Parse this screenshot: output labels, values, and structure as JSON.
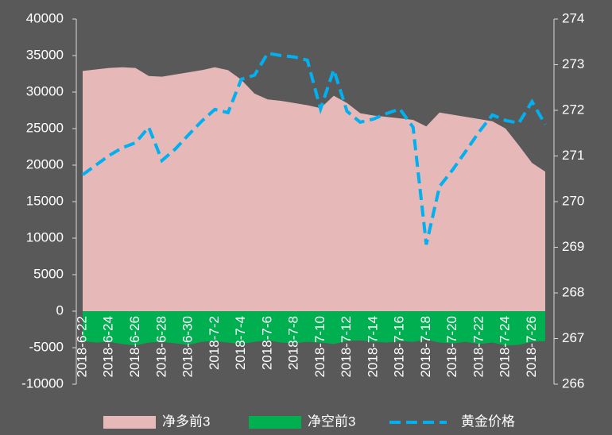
{
  "chart_data": {
    "type": "area",
    "categories": [
      "2018-6-22",
      null,
      "2018-6-24",
      null,
      "2018-6-26",
      null,
      "2018-6-28",
      null,
      "2018-6-30",
      null,
      "2018-7-2",
      null,
      "2018-7-4",
      null,
      "2018-7-6",
      null,
      "2018-7-8",
      null,
      "2018-7-10",
      null,
      "2018-7-12",
      null,
      "2018-7-14",
      null,
      "2018-7-16",
      null,
      "2018-7-18",
      null,
      "2018-7-20",
      null,
      "2018-7-22",
      null,
      "2018-7-24",
      null,
      "2018-7-26",
      null
    ],
    "series": [
      {
        "name": "净多前3",
        "type": "area",
        "color": "#e6b9b8",
        "values": [
          32900,
          33100,
          33300,
          33400,
          33300,
          32200,
          32100,
          32400,
          32700,
          33000,
          33400,
          33000,
          31700,
          29800,
          29000,
          28800,
          28500,
          28200,
          27800,
          29500,
          28500,
          27100,
          26800,
          26600,
          26400,
          26200,
          25300,
          27200,
          26900,
          26600,
          26300,
          26000,
          25000,
          22700,
          20300,
          19100
        ]
      },
      {
        "name": "净空前3",
        "type": "area",
        "color": "#00b050",
        "values": [
          -4100,
          -4300,
          -4200,
          -4500,
          -4700,
          -4300,
          -4200,
          -4400,
          -4600,
          -4200,
          -4100,
          -4300,
          -4500,
          -4200,
          -4000,
          -4300,
          -4400,
          -4200,
          -4300,
          -4500,
          -4100,
          -4000,
          -4200,
          -4300,
          -4100,
          -4200,
          -3900,
          -4300,
          -4400,
          -4200,
          -4500,
          -4300,
          -4700,
          -4600,
          -4200,
          -4100
        ]
      },
      {
        "name": "黄金价格",
        "type": "line",
        "axis": "y2",
        "color": "#00b0f0",
        "values": [
          270.59,
          270.8,
          271.01,
          271.18,
          271.29,
          271.63,
          270.9,
          271.15,
          271.46,
          271.76,
          272.02,
          271.95,
          272.68,
          272.77,
          273.25,
          273.2,
          273.17,
          273.1,
          272.03,
          272.89,
          271.98,
          271.74,
          271.81,
          271.93,
          272.03,
          271.63,
          269.06,
          270.33,
          270.7,
          271.11,
          271.53,
          271.9,
          271.78,
          271.72,
          272.19,
          271.69
        ]
      }
    ],
    "ylim": [
      -10000,
      40000
    ],
    "yticks": [
      -10000,
      -5000,
      0,
      5000,
      10000,
      15000,
      20000,
      25000,
      30000,
      35000,
      40000
    ],
    "y2lim": [
      266,
      274
    ],
    "y2ticks": [
      266,
      267,
      268,
      269,
      270,
      271,
      272,
      273,
      274
    ],
    "legend": "bottom"
  }
}
